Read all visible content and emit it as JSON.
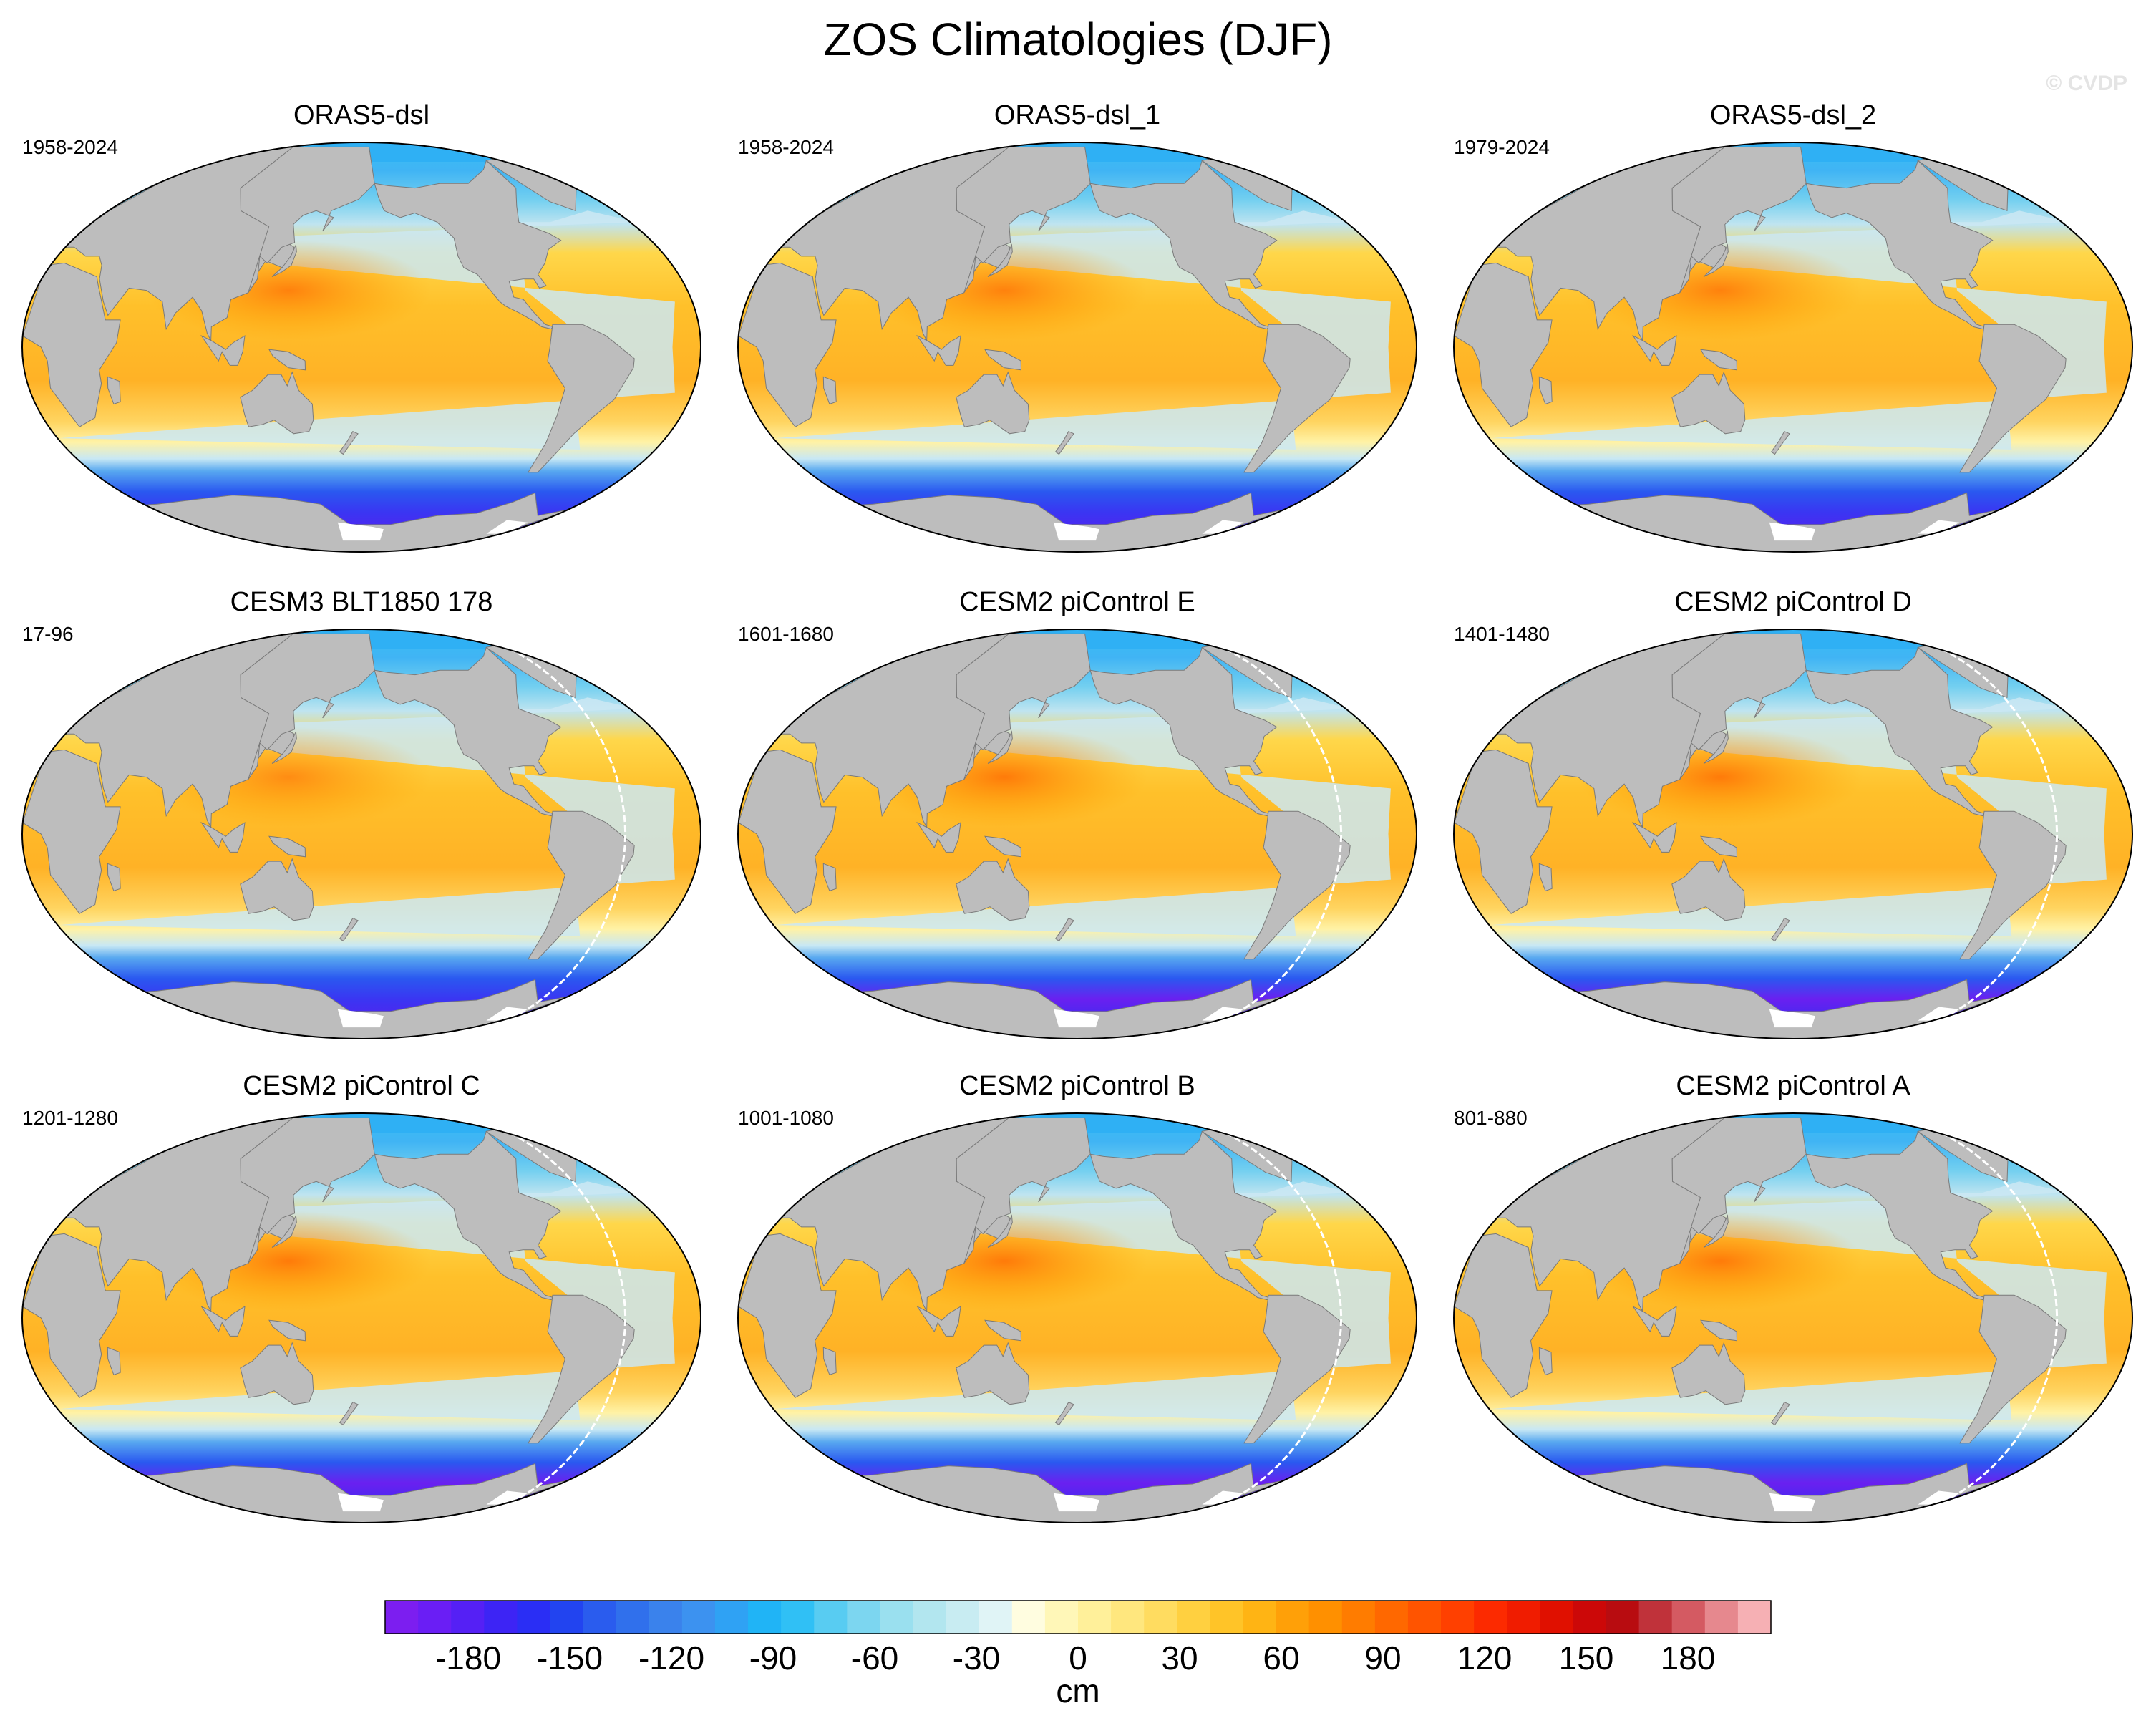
{
  "figure": {
    "title": "ZOS Climatologies (DJF)",
    "watermark": "© CVDP"
  },
  "panels": [
    {
      "title": "ORAS5-dsl",
      "years": "1958-2024",
      "ice_edge": "none",
      "intensity": 1.0,
      "antarctic_depth": 1.0,
      "seam": false
    },
    {
      "title": "ORAS5-dsl_1",
      "years": "1958-2024",
      "ice_edge": "none",
      "intensity": 1.0,
      "antarctic_depth": 1.0,
      "seam": false
    },
    {
      "title": "ORAS5-dsl_2",
      "years": "1979-2024",
      "ice_edge": "none",
      "intensity": 1.0,
      "antarctic_depth": 1.0,
      "seam": false
    },
    {
      "title": "CESM3 BLT1850 178",
      "years": "17-96",
      "ice_edge": "none",
      "intensity": 0.85,
      "antarctic_depth": 0.8,
      "seam": true
    },
    {
      "title": "CESM2 piControl E",
      "years": "1601-1680",
      "ice_edge": "none",
      "intensity": 1.1,
      "antarctic_depth": 1.2,
      "seam": true
    },
    {
      "title": "CESM2 piControl D",
      "years": "1401-1480",
      "ice_edge": "none",
      "intensity": 1.1,
      "antarctic_depth": 1.2,
      "seam": true
    },
    {
      "title": "CESM2 piControl C",
      "years": "1201-1280",
      "ice_edge": "none",
      "intensity": 1.1,
      "antarctic_depth": 1.3,
      "seam": true
    },
    {
      "title": "CESM2 piControl B",
      "years": "1001-1080",
      "ice_edge": "none",
      "intensity": 1.1,
      "antarctic_depth": 1.25,
      "seam": true
    },
    {
      "title": "CESM2 piControl A",
      "years": "801-880",
      "ice_edge": "none",
      "intensity": 1.1,
      "antarctic_depth": 1.25,
      "seam": true
    }
  ],
  "colorbar": {
    "unit": "cm",
    "tick_labels": [
      "-180",
      "-150",
      "-120",
      "-90",
      "-60",
      "-30",
      "0",
      "30",
      "60",
      "90",
      "120",
      "150",
      "180"
    ],
    "colors": [
      "#7c1ef0",
      "#6a1ef5",
      "#5520f5",
      "#3d24f5",
      "#2a2ef5",
      "#2244f0",
      "#2a5cee",
      "#3070ec",
      "#3a82ec",
      "#3c92f0",
      "#2fa2f4",
      "#20b4f6",
      "#30c0f5",
      "#58ccf2",
      "#7cd6f0",
      "#9ae0ef",
      "#b2e6ef",
      "#c8ecf2",
      "#e0f4f6",
      "#fffde0",
      "#fff7b8",
      "#fff09a",
      "#ffe77e",
      "#ffdc60",
      "#ffd040",
      "#ffc428",
      "#ffb414",
      "#ffa008",
      "#ff9000",
      "#ff7c00",
      "#ff6800",
      "#ff5400",
      "#ff4000",
      "#fc2a00",
      "#f01c00",
      "#e01000",
      "#cc0808",
      "#b80c10",
      "#c0323a",
      "#d45a62",
      "#e6888e",
      "#f6b0b4"
    ]
  },
  "map": {
    "land_color": "#bdbdbd",
    "ice_color": "#ffffff"
  }
}
